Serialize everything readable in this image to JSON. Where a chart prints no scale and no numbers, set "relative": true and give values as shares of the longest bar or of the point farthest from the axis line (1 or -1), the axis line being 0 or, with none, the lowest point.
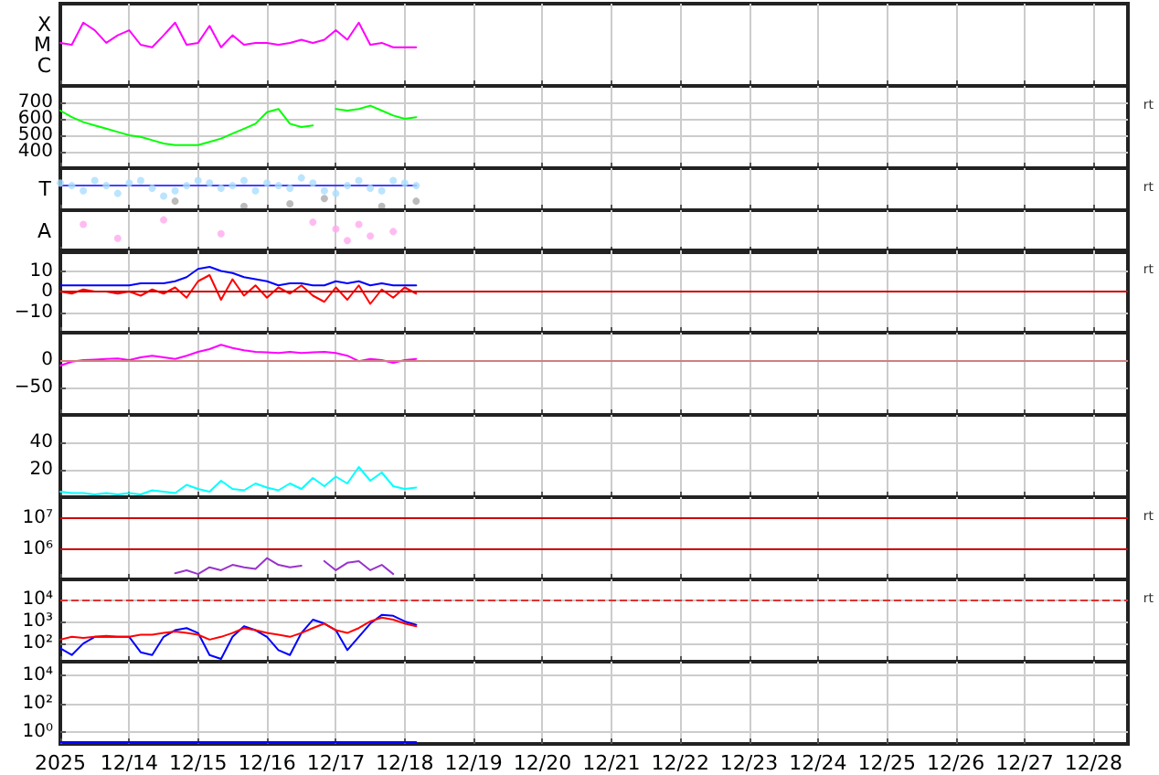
{
  "chart_data": [
    {
      "type": "line",
      "relative": true,
      "grid": "x",
      "tick_labels": "y",
      "annotations": [
        "X",
        "M",
        "C"
      ],
      "xlim": [
        "2025-12-13",
        "2025-12-28T12:00"
      ],
      "x": [
        "2025-12-13T00:00",
        "2025-12-13T04:00",
        "2025-12-13T08:00",
        "2025-12-13T12:00",
        "2025-12-13T16:00",
        "2025-12-13T20:00",
        "2025-12-14T00:00",
        "2025-12-14T04:00",
        "2025-12-14T08:00",
        "2025-12-14T12:00",
        "2025-12-14T16:00",
        "2025-12-14T20:00",
        "2025-12-15T00:00",
        "2025-12-15T04:00",
        "2025-12-15T08:00",
        "2025-12-15T12:00",
        "2025-12-15T16:00",
        "2025-12-15T20:00",
        "2025-12-16T00:00",
        "2025-12-16T04:00",
        "2025-12-16T08:00",
        "2025-12-16T12:00",
        "2025-12-16T16:00",
        "2025-12-16T20:00",
        "2025-12-17T00:00",
        "2025-12-17T04:00",
        "2025-12-17T08:00",
        "2025-12-17T12:00",
        "2025-12-17T16:00",
        "2025-12-17T20:00",
        "2025-12-18T00:00",
        "2025-12-18T04:00"
      ],
      "series": [
        {
          "color": "#ff00ff",
          "values": [
            0.68,
            0.65,
            1,
            0.88,
            0.68,
            0.8,
            0.88,
            0.65,
            0.61,
            0.8,
            1,
            0.65,
            0.68,
            0.95,
            0.61,
            0.8,
            0.65,
            0.68,
            0.68,
            0.65,
            0.68,
            0.73,
            0.68,
            0.73,
            0.88,
            0.73,
            1,
            0.65,
            0.68,
            0.61,
            0.61,
            0.61
          ]
        }
      ]
    },
    {
      "type": "line",
      "grid": true,
      "tick_labels": "y",
      "y2label": "rt",
      "xlim": [
        "2025-12-13",
        "2025-12-28T12:00"
      ],
      "ylim": [
        300,
        800
      ],
      "yticks": [
        400,
        500,
        600,
        700
      ],
      "x": [
        "2025-12-13T00:00",
        "2025-12-13T04:00",
        "2025-12-13T08:00",
        "2025-12-13T12:00",
        "2025-12-13T16:00",
        "2025-12-13T20:00",
        "2025-12-14T00:00",
        "2025-12-14T04:00",
        "2025-12-14T08:00",
        "2025-12-14T12:00",
        "2025-12-14T16:00",
        "2025-12-14T20:00",
        "2025-12-15T00:00",
        "2025-12-15T04:00",
        "2025-12-15T08:00",
        "2025-12-15T12:00",
        "2025-12-15T16:00",
        "2025-12-15T20:00",
        "2025-12-16T00:00",
        "2025-12-16T04:00",
        "2025-12-16T08:00",
        "2025-12-16T12:00",
        "2025-12-16T16:00",
        "2025-12-16T20:00",
        "2025-12-17T00:00",
        "2025-12-17T04:00",
        "2025-12-17T08:00",
        "2025-12-17T12:00",
        "2025-12-17T16:00",
        "2025-12-17T20:00",
        "2025-12-18T00:00",
        "2025-12-18T04:00"
      ],
      "series": [
        {
          "color": "#00ff00",
          "values": [
            650,
            610,
            580,
            560,
            540,
            520,
            500,
            490,
            470,
            450,
            440,
            440,
            440,
            460,
            480,
            510,
            540,
            570,
            640,
            660,
            570,
            550,
            560,
            null,
            660,
            650,
            660,
            680,
            650,
            620,
            600,
            610
          ]
        }
      ]
    },
    {
      "type": "scatter",
      "marker": "circle",
      "relative": true,
      "grid": "x",
      "tick_labels": "y",
      "y2label": "rt",
      "annotations": [
        "T"
      ],
      "xlim": [
        "2025-12-13",
        "2025-12-28T12:00"
      ],
      "x": [
        "2025-12-13T00:00",
        "2025-12-13T04:00",
        "2025-12-13T08:00",
        "2025-12-13T12:00",
        "2025-12-13T16:00",
        "2025-12-13T20:00",
        "2025-12-14T00:00",
        "2025-12-14T04:00",
        "2025-12-14T08:00",
        "2025-12-14T12:00",
        "2025-12-14T16:00",
        "2025-12-14T20:00",
        "2025-12-15T00:00",
        "2025-12-15T04:00",
        "2025-12-15T08:00",
        "2025-12-15T12:00",
        "2025-12-15T16:00",
        "2025-12-15T20:00",
        "2025-12-16T00:00",
        "2025-12-16T04:00",
        "2025-12-16T08:00",
        "2025-12-16T12:00",
        "2025-12-16T16:00",
        "2025-12-16T20:00",
        "2025-12-17T00:00",
        "2025-12-17T04:00",
        "2025-12-17T08:00",
        "2025-12-17T12:00",
        "2025-12-17T16:00",
        "2025-12-17T20:00",
        "2025-12-18T00:00",
        "2025-12-18T04:00"
      ],
      "series": [
        {
          "type": "line",
          "marker": "none",
          "color": "#4444ff",
          "values": [
            0.76,
            0.76,
            0.76,
            0.76,
            0.76,
            0.76,
            0.76,
            0.76,
            0.76,
            0.76,
            0.76,
            0.76,
            0.76,
            0.76,
            0.76,
            0.76,
            0.76,
            0.76,
            0.76,
            0.76,
            0.76,
            0.76,
            0.76,
            0.76,
            0.76,
            0.76,
            0.76,
            0.76,
            0.76,
            0.76,
            0.76,
            0.76
          ]
        },
        {
          "color": "#aaddff",
          "values": [
            0.84,
            0.76,
            0.6,
            0.92,
            0.76,
            0.52,
            0.84,
            0.92,
            0.68,
            0.44,
            0.6,
            0.76,
            0.92,
            0.84,
            0.68,
            0.76,
            0.92,
            0.6,
            0.84,
            0.76,
            0.68,
            1,
            0.84,
            0.6,
            0.52,
            0.76,
            0.92,
            0.68,
            0.6,
            0.92,
            0.84,
            0.76
          ]
        },
        {
          "color": "#aaaaaa",
          "values": [
            null,
            null,
            null,
            null,
            null,
            null,
            null,
            null,
            null,
            null,
            0.28,
            null,
            null,
            null,
            null,
            null,
            0.12,
            null,
            null,
            null,
            0.2,
            null,
            null,
            0.36,
            null,
            null,
            null,
            null,
            0.12,
            null,
            null,
            0.28
          ]
        }
      ]
    },
    {
      "type": "scatter",
      "marker": "circle",
      "relative": true,
      "grid": "x",
      "tick_labels": "y",
      "annotations": [
        "A"
      ],
      "xlim": [
        "2025-12-13",
        "2025-12-28T12:00"
      ],
      "x": [
        "2025-12-13T08:00",
        "2025-12-13T20:00",
        "2025-12-14T12:00",
        "2025-12-15T08:00",
        "2025-12-16T16:00",
        "2025-12-17T00:00",
        "2025-12-17T04:00",
        "2025-12-17T08:00",
        "2025-12-17T12:00",
        "2025-12-17T20:00"
      ],
      "series": [
        {
          "color": "#ffaaee",
          "values": [
            0.86,
            0.43,
            1,
            0.57,
            0.93,
            0.72,
            0.36,
            0.86,
            0.5,
            0.64
          ]
        }
      ]
    },
    {
      "type": "line",
      "grid": true,
      "tick_labels": "y",
      "y2label": "rt",
      "xlim": [
        "2025-12-13",
        "2025-12-28T12:00"
      ],
      "ylim": [
        -20,
        20
      ],
      "yticks": [
        {
          "value": -10,
          "label": "−10"
        },
        0,
        10
      ],
      "ref_lines": [
        {
          "axis": "y",
          "value": 0,
          "color": "#cc0000"
        }
      ],
      "x": [
        "2025-12-13T00:00",
        "2025-12-13T04:00",
        "2025-12-13T08:00",
        "2025-12-13T12:00",
        "2025-12-13T16:00",
        "2025-12-13T20:00",
        "2025-12-14T00:00",
        "2025-12-14T04:00",
        "2025-12-14T08:00",
        "2025-12-14T12:00",
        "2025-12-14T16:00",
        "2025-12-14T20:00",
        "2025-12-15T00:00",
        "2025-12-15T04:00",
        "2025-12-15T08:00",
        "2025-12-15T12:00",
        "2025-12-15T16:00",
        "2025-12-15T20:00",
        "2025-12-16T00:00",
        "2025-12-16T04:00",
        "2025-12-16T08:00",
        "2025-12-16T12:00",
        "2025-12-16T16:00",
        "2025-12-16T20:00",
        "2025-12-17T00:00",
        "2025-12-17T04:00",
        "2025-12-17T08:00",
        "2025-12-17T12:00",
        "2025-12-17T16:00",
        "2025-12-17T20:00",
        "2025-12-18T00:00",
        "2025-12-18T04:00"
      ],
      "series": [
        {
          "color": "#0000ff",
          "values": [
            3,
            3,
            3,
            3,
            3,
            3,
            3,
            4,
            4,
            4,
            5,
            7,
            11,
            12,
            10,
            9,
            7,
            6,
            5,
            3,
            4,
            4,
            3,
            3,
            5,
            4,
            5,
            3,
            4,
            3,
            3,
            3
          ]
        },
        {
          "color": "#ff0000",
          "values": [
            0,
            -1,
            1,
            0,
            0,
            -1,
            0,
            -2,
            1,
            -1,
            2,
            -3,
            5,
            8,
            -4,
            6,
            -2,
            3,
            -3,
            2,
            -1,
            3,
            -2,
            -5,
            2,
            -4,
            3,
            -6,
            1,
            -3,
            2,
            -1
          ]
        }
      ]
    },
    {
      "type": "line",
      "grid": true,
      "tick_labels": "y",
      "xlim": [
        "2025-12-13",
        "2025-12-28T12:00"
      ],
      "ylim": [
        -100,
        50
      ],
      "yticks": [
        {
          "value": -50,
          "label": "−50"
        },
        0
      ],
      "ref_lines": [
        {
          "axis": "y",
          "value": 0,
          "color": "#d08080"
        }
      ],
      "x": [
        "2025-12-13T00:00",
        "2025-12-13T04:00",
        "2025-12-13T08:00",
        "2025-12-13T12:00",
        "2025-12-13T16:00",
        "2025-12-13T20:00",
        "2025-12-14T00:00",
        "2025-12-14T04:00",
        "2025-12-14T08:00",
        "2025-12-14T12:00",
        "2025-12-14T16:00",
        "2025-12-14T20:00",
        "2025-12-15T00:00",
        "2025-12-15T04:00",
        "2025-12-15T08:00",
        "2025-12-15T12:00",
        "2025-12-15T16:00",
        "2025-12-15T20:00",
        "2025-12-16T00:00",
        "2025-12-16T04:00",
        "2025-12-16T08:00",
        "2025-12-16T12:00",
        "2025-12-16T16:00",
        "2025-12-16T20:00",
        "2025-12-17T00:00",
        "2025-12-17T04:00",
        "2025-12-17T08:00",
        "2025-12-17T12:00",
        "2025-12-17T16:00",
        "2025-12-17T20:00",
        "2025-12-18T00:00",
        "2025-12-18T04:00"
      ],
      "series": [
        {
          "color": "#ff00ff",
          "values": [
            -10,
            -3,
            0,
            1,
            2,
            3,
            0,
            5,
            8,
            5,
            2,
            8,
            15,
            20,
            28,
            22,
            18,
            15,
            14,
            13,
            15,
            13,
            14,
            15,
            13,
            8,
            -2,
            2,
            0,
            -5,
            0,
            2
          ]
        }
      ]
    },
    {
      "type": "line",
      "grid": true,
      "tick_labels": "y",
      "xlim": [
        "2025-12-13",
        "2025-12-28T12:00"
      ],
      "ylim": [
        0,
        60
      ],
      "yticks": [
        20,
        40
      ],
      "x": [
        "2025-12-13T00:00",
        "2025-12-13T04:00",
        "2025-12-13T08:00",
        "2025-12-13T12:00",
        "2025-12-13T16:00",
        "2025-12-13T20:00",
        "2025-12-14T00:00",
        "2025-12-14T04:00",
        "2025-12-14T08:00",
        "2025-12-14T12:00",
        "2025-12-14T16:00",
        "2025-12-14T20:00",
        "2025-12-15T00:00",
        "2025-12-15T04:00",
        "2025-12-15T08:00",
        "2025-12-15T12:00",
        "2025-12-15T16:00",
        "2025-12-15T20:00",
        "2025-12-16T00:00",
        "2025-12-16T04:00",
        "2025-12-16T08:00",
        "2025-12-16T12:00",
        "2025-12-16T16:00",
        "2025-12-16T20:00",
        "2025-12-17T00:00",
        "2025-12-17T04:00",
        "2025-12-17T08:00",
        "2025-12-17T12:00",
        "2025-12-17T16:00",
        "2025-12-17T20:00",
        "2025-12-18T00:00",
        "2025-12-18T04:00"
      ],
      "series": [
        {
          "color": "#00ffff",
          "values": [
            4,
            3,
            3,
            2,
            3,
            2,
            3,
            2,
            5,
            4,
            3,
            9,
            6,
            4,
            12,
            6,
            5,
            10,
            7,
            5,
            10,
            6,
            14,
            8,
            15,
            10,
            22,
            12,
            18,
            8,
            6,
            7
          ]
        }
      ]
    },
    {
      "type": "line",
      "log": "y",
      "grid": true,
      "tick_labels": "y",
      "y2label": "rt",
      "xlim": [
        "2025-12-13",
        "2025-12-28T12:00"
      ],
      "ylim": [
        100000,
        50000000
      ],
      "yticks": [
        {
          "value": 1000000,
          "label": "10⁶"
        },
        {
          "value": 10000000,
          "label": "10⁷"
        }
      ],
      "ref_lines": [
        {
          "axis": "y",
          "value": 1000000,
          "color": "#cc0000"
        },
        {
          "axis": "y",
          "value": 10000000,
          "color": "#cc0000"
        }
      ],
      "series": [
        {
          "color": "#9933cc",
          "x": [
            "2025-12-14T16:00",
            "2025-12-14T20:00",
            "2025-12-15T00:00",
            "2025-12-15T04:00",
            "2025-12-15T08:00",
            "2025-12-15T12:00",
            "2025-12-15T16:00",
            "2025-12-15T20:00",
            "2025-12-16T00:00",
            "2025-12-16T04:00",
            "2025-12-16T08:00",
            "2025-12-16T12:00",
            "2025-12-16T16:00",
            "2025-12-16T20:00",
            "2025-12-17T00:00",
            "2025-12-17T04:00",
            "2025-12-17T08:00",
            "2025-12-17T12:00",
            "2025-12-17T16:00",
            "2025-12-17T20:00"
          ],
          "values": [
            160000,
            200000,
            150000,
            250000,
            200000,
            300000,
            250000,
            220000,
            500000,
            300000,
            250000,
            280000,
            null,
            400000,
            200000,
            350000,
            400000,
            200000,
            300000,
            150000
          ]
        }
      ]
    },
    {
      "type": "line",
      "log": "y",
      "grid": true,
      "tick_labels": "y",
      "y2label": "rt",
      "xlim": [
        "2025-12-13",
        "2025-12-28T12:00"
      ],
      "ylim": [
        15,
        80000
      ],
      "yticks": [
        {
          "value": 100,
          "label": "10²"
        },
        {
          "value": 1000,
          "label": "10³"
        },
        {
          "value": 10000,
          "label": "10⁴"
        }
      ],
      "ref_lines": [
        {
          "axis": "y",
          "value": 10000,
          "color": "#dd3333",
          "line_style": "dashed"
        }
      ],
      "x": [
        "2025-12-13T00:00",
        "2025-12-13T04:00",
        "2025-12-13T08:00",
        "2025-12-13T12:00",
        "2025-12-13T16:00",
        "2025-12-13T20:00",
        "2025-12-14T00:00",
        "2025-12-14T04:00",
        "2025-12-14T08:00",
        "2025-12-14T12:00",
        "2025-12-14T16:00",
        "2025-12-14T20:00",
        "2025-12-15T00:00",
        "2025-12-15T04:00",
        "2025-12-15T08:00",
        "2025-12-15T12:00",
        "2025-12-15T16:00",
        "2025-12-15T20:00",
        "2025-12-16T00:00",
        "2025-12-16T04:00",
        "2025-12-16T08:00",
        "2025-12-16T12:00",
        "2025-12-16T16:00",
        "2025-12-16T20:00",
        "2025-12-17T00:00",
        "2025-12-17T04:00",
        "2025-12-17T08:00",
        "2025-12-17T12:00",
        "2025-12-17T16:00",
        "2025-12-17T20:00",
        "2025-12-18T00:00",
        "2025-12-18T04:00"
      ],
      "series": [
        {
          "color": "#0000ff",
          "values": [
            60,
            30,
            100,
            200,
            200,
            200,
            200,
            40,
            30,
            200,
            400,
            500,
            300,
            30,
            20,
            200,
            600,
            400,
            200,
            50,
            30,
            300,
            1200,
            800,
            400,
            50,
            200,
            800,
            2000,
            1800,
            1000,
            700
          ]
        },
        {
          "color": "#ff0000",
          "values": [
            150,
            200,
            180,
            200,
            220,
            200,
            200,
            250,
            250,
            300,
            350,
            300,
            250,
            150,
            200,
            300,
            500,
            400,
            300,
            250,
            200,
            300,
            500,
            800,
            400,
            300,
            500,
            1000,
            1500,
            1200,
            800,
            600
          ]
        }
      ]
    },
    {
      "type": "line",
      "log": "y",
      "grid": true,
      "xlim": [
        "2025-12-13",
        "2025-12-28T12:00"
      ],
      "xticks": [
        {
          "value": "2025-12-13",
          "label": "2025"
        },
        {
          "value": "2025-12-14",
          "label": "12/14"
        },
        {
          "value": "2025-12-15",
          "label": "12/15"
        },
        {
          "value": "2025-12-16",
          "label": "12/16"
        },
        {
          "value": "2025-12-17",
          "label": "12/17"
        },
        {
          "value": "2025-12-18",
          "label": "12/18"
        },
        {
          "value": "2025-12-19",
          "label": "12/19"
        },
        {
          "value": "2025-12-20",
          "label": "12/20"
        },
        {
          "value": "2025-12-21",
          "label": "12/21"
        },
        {
          "value": "2025-12-22",
          "label": "12/22"
        },
        {
          "value": "2025-12-23",
          "label": "12/23"
        },
        {
          "value": "2025-12-24",
          "label": "12/24"
        },
        {
          "value": "2025-12-25",
          "label": "12/25"
        },
        {
          "value": "2025-12-26",
          "label": "12/26"
        },
        {
          "value": "2025-12-27",
          "label": "12/27"
        },
        {
          "value": "2025-12-28",
          "label": "12/28"
        }
      ],
      "ylim": [
        0.15,
        100000
      ],
      "yticks": [
        {
          "value": 1,
          "label": "10⁰"
        },
        {
          "value": 100,
          "label": "10²"
        },
        {
          "value": 10000,
          "label": "10⁴"
        }
      ],
      "x": [
        "2025-12-13T00:00",
        "2025-12-13T04:00",
        "2025-12-13T08:00",
        "2025-12-13T12:00",
        "2025-12-13T16:00",
        "2025-12-13T20:00",
        "2025-12-14T00:00",
        "2025-12-14T04:00",
        "2025-12-14T08:00",
        "2025-12-14T12:00",
        "2025-12-14T16:00",
        "2025-12-14T20:00",
        "2025-12-15T00:00",
        "2025-12-15T04:00",
        "2025-12-15T08:00",
        "2025-12-15T12:00",
        "2025-12-15T16:00",
        "2025-12-15T20:00",
        "2025-12-16T00:00",
        "2025-12-16T04:00",
        "2025-12-16T08:00",
        "2025-12-16T12:00",
        "2025-12-16T16:00",
        "2025-12-16T20:00",
        "2025-12-17T00:00",
        "2025-12-17T04:00",
        "2025-12-17T08:00",
        "2025-12-17T12:00",
        "2025-12-17T16:00",
        "2025-12-17T20:00",
        "2025-12-18T00:00",
        "2025-12-18T04:00"
      ],
      "series": [
        {
          "color": "#0000ff",
          "values": [
            0.2,
            0.2,
            0.2,
            0.2,
            0.2,
            0.2,
            0.2,
            0.2,
            0.2,
            0.2,
            0.2,
            0.2,
            0.2,
            0.2,
            0.2,
            0.2,
            0.2,
            0.2,
            0.2,
            0.2,
            0.2,
            0.2,
            0.2,
            0.2,
            0.2,
            0.2,
            0.2,
            0.2,
            0.2,
            0.2,
            0.2,
            0.2
          ]
        }
      ]
    }
  ]
}
